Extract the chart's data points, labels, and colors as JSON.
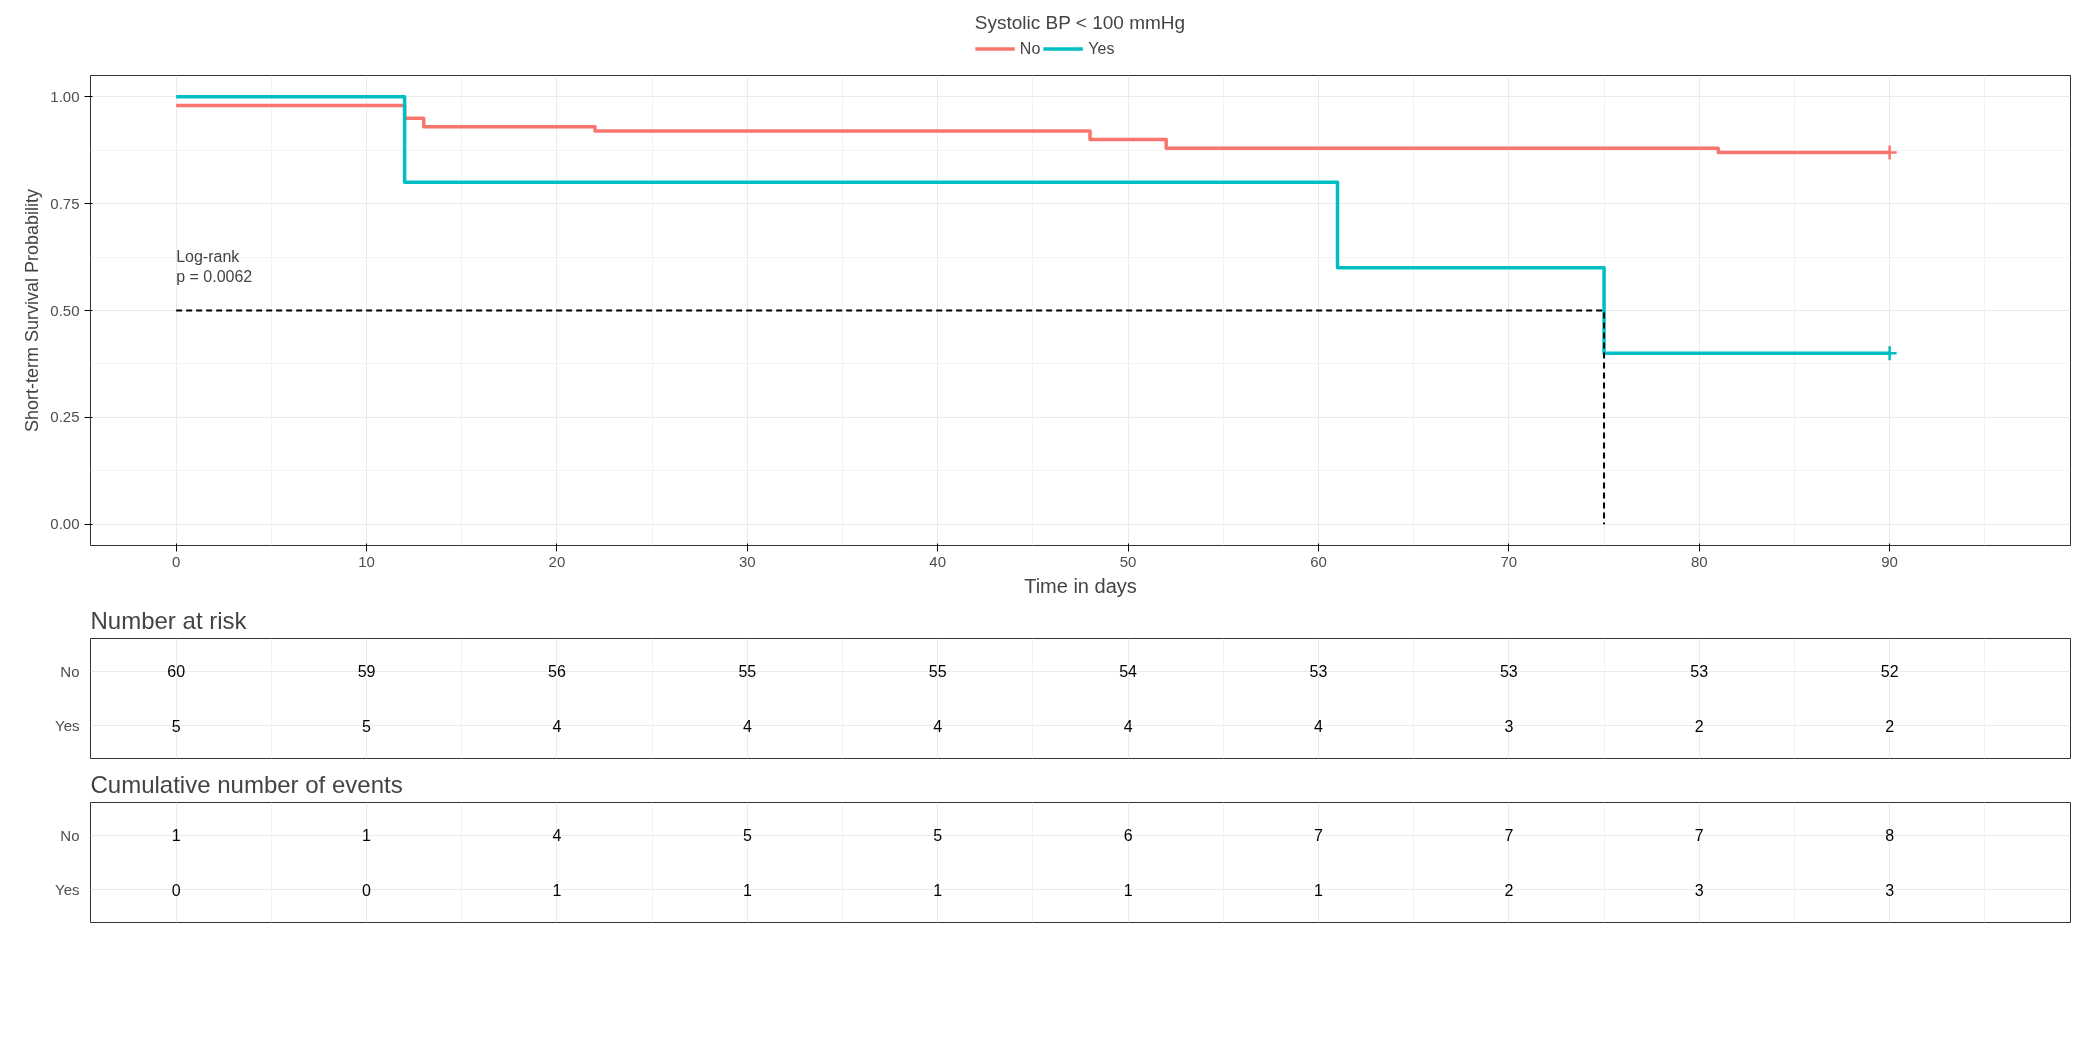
{
  "chart_data": [
    {
      "type": "step",
      "xlabel": "Time in days",
      "ylabel": "Short-term Survival Probability",
      "legend_title": "Systolic BP < 100 mmHg",
      "legend": "top",
      "xlim": [
        -4.5,
        99.5
      ],
      "xticks": [
        0,
        10,
        20,
        30,
        40,
        50,
        60,
        70,
        80,
        90
      ],
      "ylim": [
        -0.05,
        1.05
      ],
      "yticks": [
        {
          "value": 0,
          "label": "0.00"
        },
        {
          "value": 0.25,
          "label": "0.25"
        },
        {
          "value": 0.5,
          "label": "0.50"
        },
        {
          "value": 0.75,
          "label": "0.75"
        },
        {
          "value": 1,
          "label": "1.00"
        }
      ],
      "grid": true,
      "marker": "none",
      "annotations": [
        "Log-rank\np = 0.0062"
      ],
      "series": [
        {
          "name": "No",
          "color": "#f8766d",
          "x": [
            0,
            12,
            13,
            22,
            48,
            52,
            81,
            90
          ],
          "values": [
            0.98,
            0.95,
            0.93,
            0.92,
            0.9,
            0.88,
            0.87,
            0.87
          ]
        },
        {
          "name": "Yes",
          "color": "#00bfc4",
          "x": [
            0,
            12,
            61,
            75,
            90
          ],
          "values": [
            1,
            0.8,
            0.6,
            0.4,
            0.4
          ]
        },
        {
          "type": "scatter",
          "marker": "cross",
          "color": "#f8766d",
          "x": [
            90
          ],
          "values": [
            0.87
          ]
        },
        {
          "type": "scatter",
          "marker": "cross",
          "color": "#00bfc4",
          "x": [
            90
          ],
          "values": [
            0.4
          ]
        },
        {
          "type": "line",
          "line_style": "dashed",
          "color": "#000000",
          "x": [
            0,
            75,
            75
          ],
          "values": [
            0.5,
            0.5,
            0
          ]
        }
      ]
    },
    {
      "type": "heatmap",
      "title": "Number at risk",
      "categories": [
        null,
        null,
        null,
        null,
        null,
        null,
        null,
        null,
        null,
        null
      ],
      "y_categories": [
        "No",
        "Yes"
      ],
      "data_labels": true,
      "grid": true,
      "cells": [
        [
          60,
          59,
          56,
          55,
          55,
          54,
          53,
          53,
          53,
          52
        ],
        [
          5,
          5,
          4,
          4,
          4,
          4,
          4,
          3,
          2,
          2
        ]
      ]
    },
    {
      "type": "heatmap",
      "title": "Cumulative number of events",
      "categories": [
        null,
        null,
        null,
        null,
        null,
        null,
        null,
        null,
        null,
        null
      ],
      "y_categories": [
        "No",
        "Yes"
      ],
      "data_labels": true,
      "grid": true,
      "cells": [
        [
          1,
          1,
          4,
          5,
          5,
          6,
          7,
          7,
          7,
          8
        ],
        [
          0,
          0,
          1,
          1,
          1,
          1,
          1,
          2,
          3,
          3
        ]
      ]
    }
  ]
}
